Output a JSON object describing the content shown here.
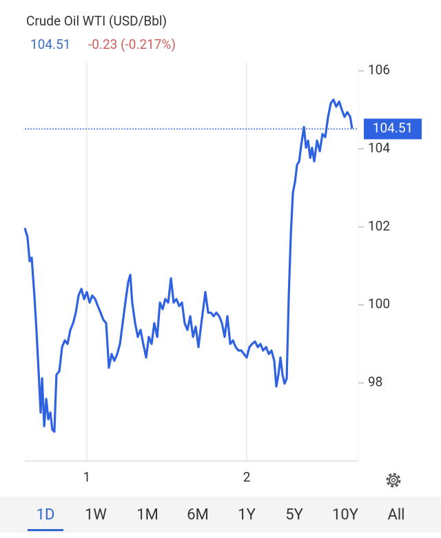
{
  "chart_data": {
    "type": "line",
    "title": "Crude Oil WTI (USD/Bbl)",
    "last_price": 104.51,
    "change": "-0.23 (-0.217%)",
    "color": "#2f62e0",
    "x": [
      0.612,
      0.629,
      0.642,
      0.655,
      0.672,
      0.685,
      0.698,
      0.711,
      0.72,
      0.733,
      0.746,
      0.759,
      0.772,
      0.784,
      0.797,
      0.81,
      0.828,
      0.845,
      0.862,
      0.879,
      0.897,
      0.914,
      0.931,
      0.948,
      0.966,
      0.983,
      1.0,
      1.017,
      1.034,
      1.052,
      1.069,
      1.086,
      1.103,
      1.121,
      1.138,
      1.155,
      1.172,
      1.19,
      1.207,
      1.224,
      1.241,
      1.259,
      1.272,
      1.284,
      1.302,
      1.319,
      1.336,
      1.353,
      1.371,
      1.388,
      1.405,
      1.422,
      1.44,
      1.457,
      1.474,
      1.491,
      1.509,
      1.526,
      1.543,
      1.56,
      1.578,
      1.595,
      1.612,
      1.629,
      1.647,
      1.664,
      1.681,
      1.698,
      1.716,
      1.733,
      1.741,
      1.759,
      1.776,
      1.793,
      1.81,
      1.828,
      1.845,
      1.862,
      1.879,
      1.897,
      1.914,
      1.931,
      1.948,
      1.966,
      1.983,
      2.0,
      2.017,
      2.034,
      2.052,
      2.069,
      2.086,
      2.103,
      2.121,
      2.138,
      2.155,
      2.172,
      2.185,
      2.198,
      2.211,
      2.224,
      2.237,
      2.25,
      2.263,
      2.276,
      2.289,
      2.302,
      2.315,
      2.328,
      2.341,
      2.358,
      2.371,
      2.384,
      2.397,
      2.409,
      2.422,
      2.44,
      2.457,
      2.474,
      2.491,
      2.509,
      2.526,
      2.543,
      2.56,
      2.578,
      2.595,
      2.612,
      2.629,
      2.647,
      2.659
    ],
    "values": [
      101.97,
      101.74,
      101.12,
      101.21,
      100.24,
      99.36,
      98.3,
      97.24,
      98.12,
      96.89,
      97.59,
      97.07,
      97.24,
      96.8,
      96.75,
      98.21,
      98.3,
      98.92,
      99.09,
      99.0,
      99.36,
      99.53,
      99.8,
      100.24,
      100.41,
      100.15,
      100.33,
      100.06,
      100.24,
      100.15,
      99.97,
      99.8,
      99.62,
      99.53,
      98.39,
      98.74,
      98.57,
      98.74,
      99.0,
      99.53,
      100.06,
      100.59,
      100.77,
      100.06,
      99.53,
      99.18,
      99.36,
      99.0,
      98.65,
      99.18,
      99.0,
      99.53,
      99.18,
      100.06,
      99.89,
      100.15,
      100.06,
      100.68,
      100.06,
      100.15,
      99.97,
      100.06,
      99.53,
      99.36,
      99.71,
      99.18,
      99.44,
      98.92,
      99.53,
      100.06,
      100.33,
      99.8,
      99.8,
      99.71,
      99.8,
      99.71,
      99.53,
      99.18,
      99.71,
      99.0,
      99.09,
      98.92,
      98.83,
      98.83,
      98.74,
      98.65,
      98.92,
      99.0,
      99.06,
      98.92,
      99.0,
      98.83,
      98.92,
      98.74,
      98.83,
      98.57,
      97.91,
      98.21,
      98.65,
      98.21,
      97.98,
      98.12,
      100.24,
      101.82,
      102.88,
      103.15,
      103.59,
      103.68,
      104.11,
      104.56,
      104.03,
      104.21,
      103.77,
      104.03,
      103.68,
      104.21,
      103.94,
      104.38,
      104.3,
      104.82,
      105.17,
      105.26,
      105.08,
      105.21,
      105.0,
      104.82,
      104.94,
      104.82,
      104.52
    ],
    "xlim": [
      0.612,
      2.698
    ],
    "ylim": [
      96,
      106.2
    ],
    "xticks": [
      1,
      2
    ],
    "yticks": [
      98,
      100,
      102,
      104,
      106
    ],
    "grid": true,
    "ranges": [
      "1D",
      "1W",
      "1M",
      "6M",
      "1Y",
      "5Y",
      "10Y",
      "All"
    ],
    "selected_range": 0
  }
}
